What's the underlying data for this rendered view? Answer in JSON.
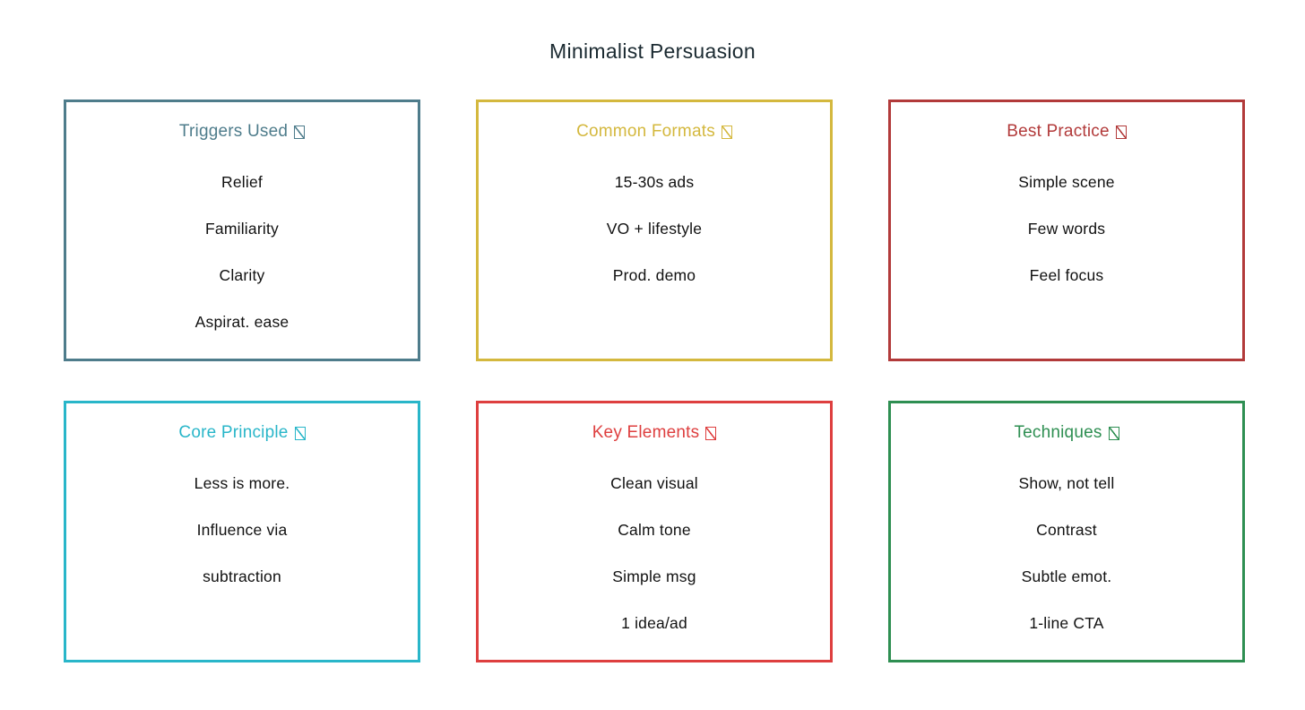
{
  "page": {
    "title": "Minimalist Persuasion",
    "title_color": "#1b2a31",
    "background": "#ffffff"
  },
  "cards": [
    {
      "title": "Triggers Used",
      "icon": "missing-glyph",
      "color": "#4e7c8b",
      "items": [
        "Relief",
        "Familiarity",
        "Clarity",
        "Aspirat. ease"
      ]
    },
    {
      "title": "Common Formats",
      "icon": "missing-glyph",
      "color": "#d4b83e",
      "items": [
        "15-30s ads",
        "VO + lifestyle",
        "Prod. demo"
      ]
    },
    {
      "title": "Best Practice",
      "icon": "missing-glyph",
      "color": "#b23a3a",
      "items": [
        "Simple scene",
        "Few words",
        "Feel focus"
      ]
    },
    {
      "title": "Core Principle",
      "icon": "missing-glyph",
      "color": "#29b6c9",
      "items": [
        "Less is more.",
        "Influence via",
        "subtraction"
      ]
    },
    {
      "title": "Key Elements",
      "icon": "missing-glyph",
      "color": "#de3f3f",
      "items": [
        "Clean visual",
        "Calm tone",
        "Simple msg",
        "1 idea/ad"
      ]
    },
    {
      "title": "Techniques",
      "icon": "missing-glyph",
      "color": "#2e8f52",
      "items": [
        "Show, not tell",
        "Contrast",
        "Subtle emot.",
        "1-line CTA"
      ]
    }
  ]
}
